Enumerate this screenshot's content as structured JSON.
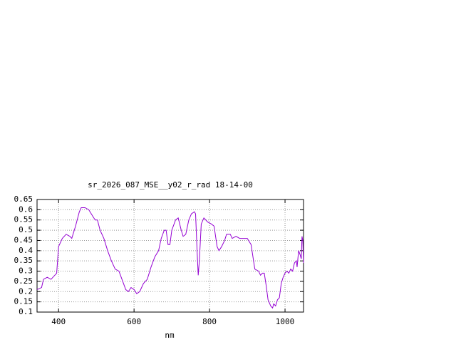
{
  "chart_data": {
    "type": "line",
    "title": "sr_2026_087_MSE__y02_r_rad 18-14-00",
    "xlabel": "nm",
    "xlim": [
      343,
      1049
    ],
    "xticks": [
      400,
      600,
      800,
      1000
    ],
    "ylim": [
      0.1,
      0.65
    ],
    "yticks": [
      0.1,
      0.15,
      0.2,
      0.25,
      0.3,
      0.35,
      0.4,
      0.45,
      0.5,
      0.55,
      0.6,
      0.65
    ],
    "grid": true,
    "series": [
      {
        "color": "#9400d3",
        "x": [
          343,
          355,
          360,
          370,
          380,
          395,
          400,
          410,
          420,
          430,
          435,
          445,
          455,
          460,
          470,
          480,
          490,
          497,
          503,
          510,
          520,
          530,
          540,
          550,
          560,
          570,
          578,
          585,
          592,
          600,
          607,
          615,
          625,
          635,
          645,
          655,
          665,
          672,
          680,
          685,
          690,
          695,
          700,
          710,
          717,
          725,
          730,
          737,
          745,
          752,
          760,
          763,
          767,
          770,
          773,
          778,
          785,
          795,
          805,
          812,
          820,
          825,
          832,
          840,
          845,
          855,
          860,
          870,
          880,
          900,
          910,
          915,
          920,
          930,
          935,
          940,
          945,
          950,
          955,
          962,
          967,
          970,
          975,
          980,
          985,
          990,
          995,
          1000,
          1005,
          1010,
          1015,
          1020,
          1025,
          1030,
          1032,
          1036,
          1040,
          1043,
          1045,
          1047,
          1049
        ],
        "values": [
          0.21,
          0.22,
          0.26,
          0.27,
          0.26,
          0.29,
          0.42,
          0.46,
          0.48,
          0.47,
          0.46,
          0.52,
          0.59,
          0.61,
          0.61,
          0.6,
          0.57,
          0.55,
          0.55,
          0.5,
          0.46,
          0.4,
          0.35,
          0.31,
          0.3,
          0.25,
          0.21,
          0.2,
          0.22,
          0.21,
          0.19,
          0.2,
          0.24,
          0.26,
          0.32,
          0.37,
          0.4,
          0.46,
          0.5,
          0.5,
          0.43,
          0.43,
          0.5,
          0.55,
          0.56,
          0.5,
          0.47,
          0.48,
          0.55,
          0.58,
          0.59,
          0.58,
          0.4,
          0.28,
          0.35,
          0.53,
          0.56,
          0.54,
          0.53,
          0.52,
          0.42,
          0.4,
          0.42,
          0.45,
          0.48,
          0.48,
          0.46,
          0.47,
          0.46,
          0.46,
          0.43,
          0.37,
          0.31,
          0.3,
          0.28,
          0.29,
          0.29,
          0.23,
          0.16,
          0.13,
          0.12,
          0.14,
          0.13,
          0.16,
          0.17,
          0.24,
          0.27,
          0.29,
          0.3,
          0.29,
          0.31,
          0.3,
          0.34,
          0.35,
          0.32,
          0.4,
          0.38,
          0.36,
          0.47,
          0.45,
          0.34
        ]
      }
    ]
  }
}
